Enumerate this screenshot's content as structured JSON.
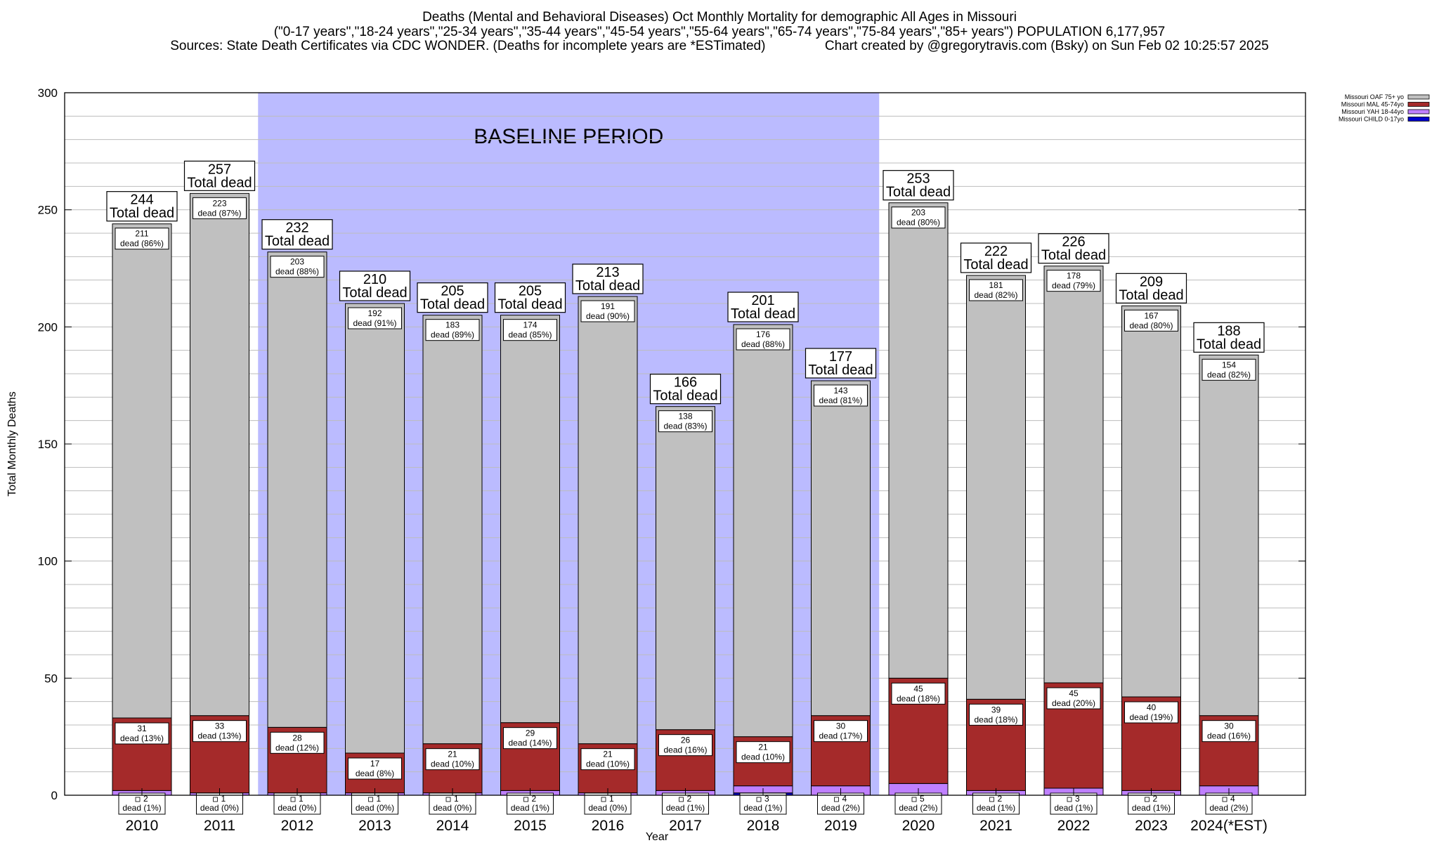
{
  "title": {
    "line1": "Deaths (Mental and Behavioral Diseases) Oct Monthly Mortality for demographic All Ages in Missouri",
    "line2": "(\"0-17 years\",\"18-24 years\",\"25-34 years\",\"35-44 years\",\"45-54 years\",\"55-64 years\",\"65-74 years\",\"75-84 years\",\"85+ years\") POPULATION 6,177,957",
    "line3": "Sources: State Death Certificates via CDC WONDER. (Deaths for incomplete years are *ESTimated)                Chart created by @gregorytravis.com (Bsky) on Sun Feb 02 10:25:57 2025"
  },
  "chart_data": {
    "type": "bar",
    "stacked": true,
    "title": "Deaths (Mental and Behavioral Diseases) Oct Monthly Mortality for demographic All Ages in Missouri",
    "xlabel": "Year",
    "ylabel": "Total Monthly Deaths",
    "ylim": [
      0,
      300
    ],
    "yticks": [
      0,
      50,
      100,
      150,
      200,
      250,
      300
    ],
    "grid": true,
    "legend_position": "top-right",
    "baseline_label": "BASELINE PERIOD",
    "baseline_range": [
      "2012",
      "2019"
    ],
    "total_suffix": "Total dead",
    "segment_suffix": "dead",
    "categories": [
      "2010",
      "2011",
      "2012",
      "2013",
      "2014",
      "2015",
      "2016",
      "2017",
      "2018",
      "2019",
      "2020",
      "2021",
      "2022",
      "2023",
      "2024(*EST)"
    ],
    "totals": [
      244,
      257,
      232,
      210,
      205,
      205,
      213,
      166,
      201,
      177,
      253,
      222,
      226,
      209,
      188
    ],
    "series": [
      {
        "name": "Missouri CHILD 0-17yo",
        "color": "#0000cc",
        "values": [
          0,
          0,
          0,
          0,
          0,
          0,
          0,
          0,
          1,
          0,
          0,
          0,
          0,
          0,
          0
        ]
      },
      {
        "name": "Missouri YAH 18-44yo",
        "color": "#bf80ff",
        "values": [
          2,
          1,
          1,
          1,
          1,
          2,
          1,
          2,
          3,
          4,
          5,
          2,
          3,
          2,
          4
        ],
        "pct": [
          "1%",
          "0%",
          "0%",
          "0%",
          "0%",
          "1%",
          "0%",
          "1%",
          "1%",
          "2%",
          "2%",
          "1%",
          "1%",
          "1%",
          "2%"
        ]
      },
      {
        "name": "Missouri MAL 45-74yo",
        "color": "#a52a2a",
        "values": [
          31,
          33,
          28,
          17,
          21,
          29,
          21,
          26,
          21,
          30,
          45,
          39,
          45,
          40,
          30
        ],
        "pct": [
          "13%",
          "13%",
          "12%",
          "8%",
          "10%",
          "14%",
          "10%",
          "16%",
          "10%",
          "17%",
          "18%",
          "18%",
          "20%",
          "19%",
          "16%"
        ]
      },
      {
        "name": "Missouri OAF 75+ yo",
        "color": "#c0c0c0",
        "values": [
          211,
          223,
          203,
          192,
          183,
          174,
          191,
          138,
          176,
          143,
          203,
          181,
          178,
          167,
          154
        ],
        "pct": [
          "86%",
          "87%",
          "88%",
          "91%",
          "89%",
          "85%",
          "90%",
          "83%",
          "88%",
          "81%",
          "80%",
          "82%",
          "79%",
          "80%",
          "82%"
        ]
      }
    ]
  }
}
